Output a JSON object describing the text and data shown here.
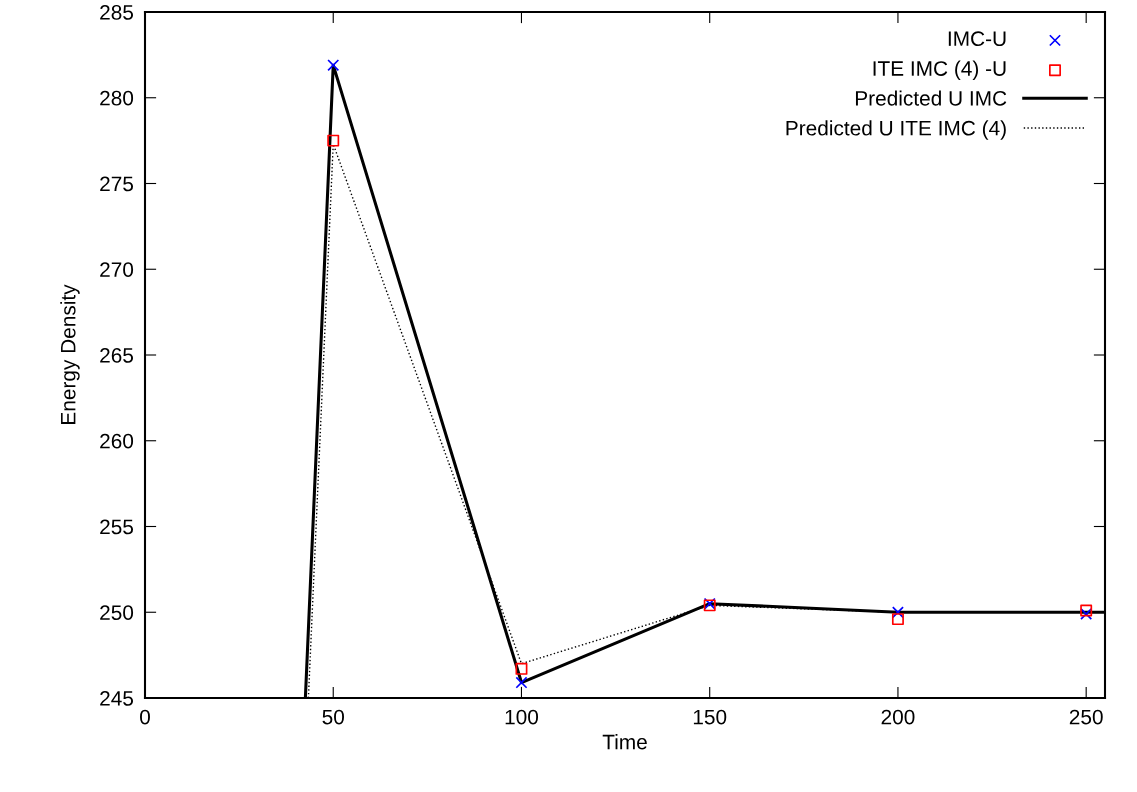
{
  "chart_data": {
    "type": "line",
    "xlabel": "Time",
    "ylabel": "Energy Density",
    "series": [
      {
        "name": "IMC-U",
        "type": "scatter",
        "marker": "cross",
        "color": "#0000ff",
        "x": [
          50,
          100,
          150,
          200,
          250
        ],
        "values": [
          281.9,
          245.9,
          250.5,
          250.0,
          249.9
        ]
      },
      {
        "name": "ITE IMC (4) -U",
        "type": "scatter",
        "marker": "square",
        "color": "#ff0000",
        "x": [
          50,
          100,
          150,
          200,
          250
        ],
        "values": [
          277.5,
          246.7,
          250.4,
          249.6,
          250.1
        ]
      },
      {
        "name": "Predicted U IMC",
        "line_style": "solid",
        "color": "#000000",
        "x": [
          42.6,
          50,
          100,
          150,
          200,
          250,
          255
        ],
        "values": [
          245,
          281.9,
          245.9,
          250.5,
          250.0,
          250.0,
          250.0
        ]
      },
      {
        "name": "Predicted U ITE IMC (4)",
        "line_style": "dotted",
        "color": "#000000",
        "x": [
          43.4,
          50,
          100,
          150,
          200,
          250,
          255
        ],
        "values": [
          245,
          277.3,
          247.0,
          250.4,
          250.0,
          250.0,
          250.0
        ]
      }
    ],
    "xlim": [
      0,
      255
    ],
    "xticks": [
      0,
      50,
      100,
      150,
      200,
      250
    ],
    "ylim": [
      245,
      285
    ],
    "yticks": [
      245,
      250,
      255,
      260,
      265,
      270,
      275,
      280,
      285
    ],
    "grid": false,
    "legend": "top right"
  }
}
